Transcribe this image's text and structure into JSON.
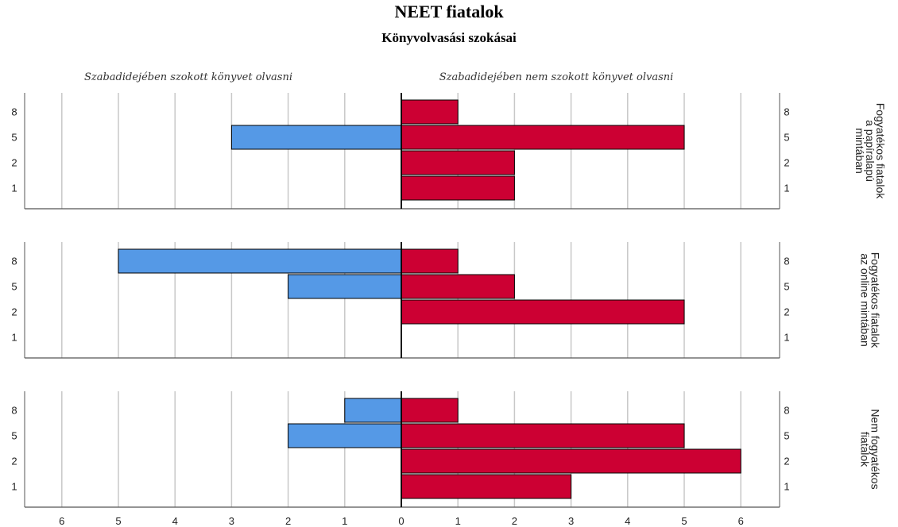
{
  "chart_data": {
    "type": "bar",
    "title": "NEET fiatalok",
    "subtitle": "Könyvolvasási szokásai",
    "left_header": "Szabadidejében szokott könyvet olvasni",
    "right_header": "Szabadidejében nem szokott könyvet olvasni",
    "categories": [
      "8",
      "5",
      "2",
      "1"
    ],
    "xlim": [
      0,
      6
    ],
    "x_ticks": [
      "6",
      "5",
      "4",
      "3",
      "2",
      "1",
      "0",
      "1",
      "2",
      "3",
      "4",
      "5",
      "6"
    ],
    "grid": true,
    "colors": {
      "left": "#5599e6",
      "right": "#cc0033"
    },
    "panels": [
      {
        "label": [
          "Fogyatékos fiatalok",
          "a papíralapú",
          "mintában"
        ],
        "left": [
          0,
          3,
          0,
          0
        ],
        "right": [
          1,
          5,
          2,
          2
        ]
      },
      {
        "label": [
          "Fogyatékos fiatalok",
          "az online mintában"
        ],
        "left": [
          5,
          2,
          0,
          0
        ],
        "right": [
          1,
          2,
          5,
          0
        ]
      },
      {
        "label": [
          "Nem fogyatékos",
          "fiatalok"
        ],
        "left": [
          1,
          2,
          0,
          0
        ],
        "right": [
          1,
          5,
          6,
          3
        ]
      }
    ]
  }
}
